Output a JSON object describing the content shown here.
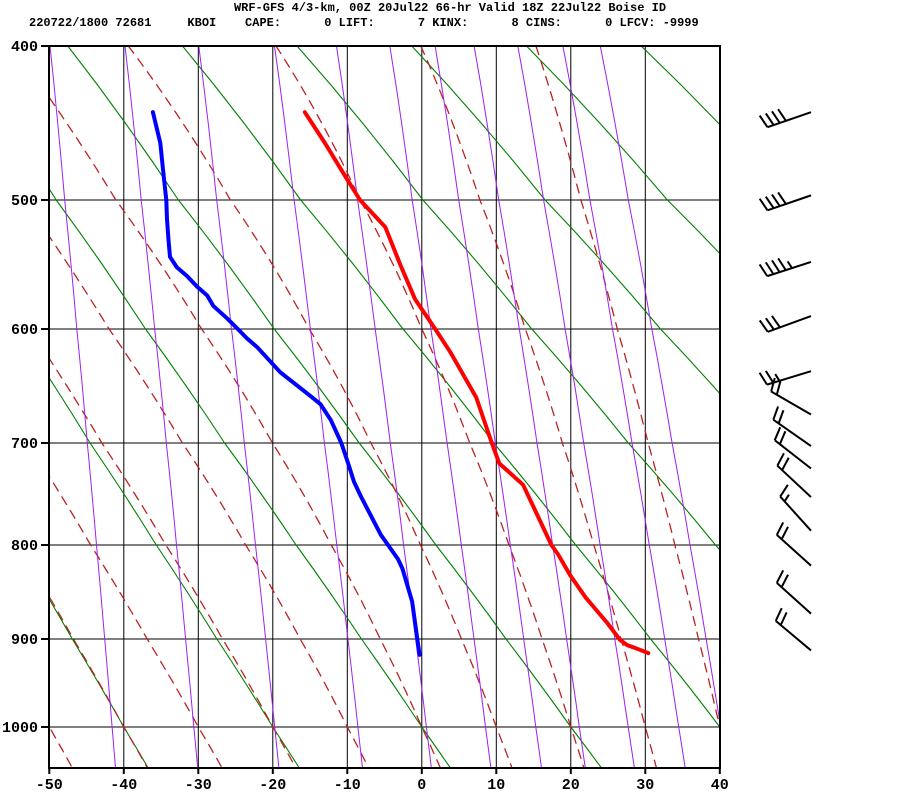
{
  "header": {
    "title": "WRF-GFS 4/3-km, 00Z 20Jul22 66-hr Valid 18Z 22Jul22 Boise ID",
    "stats": "220722/1800 72681     KBOI    CAPE:      0 LIFT:      7 KINX:      8 CINS:      0 LFCV: -9999",
    "station_id": "KBOI",
    "cape": "0",
    "lift": "7",
    "kinx": "8",
    "cins": "0",
    "lfcv": "-9999"
  },
  "chart_data": {
    "type": "line",
    "title": "WRF-GFS 4/3-km, 00Z 20Jul22 66-hr Valid 18Z 22Jul22 Boise ID",
    "xlabel": "",
    "ylabel": "",
    "x_ticks": [
      -50,
      -40,
      -30,
      -20,
      -10,
      0,
      10,
      20,
      30,
      40
    ],
    "y_ticks": [
      400,
      500,
      600,
      700,
      800,
      900,
      1000
    ],
    "xlim": [
      -50,
      40
    ],
    "pressure_lim": [
      400,
      1050
    ],
    "grid": true,
    "series": [
      {
        "name": "temperature",
        "color": "#ff0000",
        "points_p_t": [
          [
            443,
            -15.7
          ],
          [
            463,
            -13.0
          ],
          [
            482,
            -10.6
          ],
          [
            500,
            -8.3
          ],
          [
            521,
            -4.9
          ],
          [
            550,
            -2.9
          ],
          [
            577,
            -0.9
          ],
          [
            600,
            1.8
          ],
          [
            620,
            3.8
          ],
          [
            660,
            7.3
          ],
          [
            700,
            9.4
          ],
          [
            720,
            10.4
          ],
          [
            741,
            13.6
          ],
          [
            800,
            17.4
          ],
          [
            810,
            18.3
          ],
          [
            832,
            19.9
          ],
          [
            856,
            22.0
          ],
          [
            883,
            24.9
          ],
          [
            901,
            26.6
          ],
          [
            907,
            27.6
          ],
          [
            911,
            28.9
          ],
          [
            916,
            30.4
          ]
        ]
      },
      {
        "name": "dewpoint",
        "color": "#0000ff",
        "points_p_t": [
          [
            443,
            -36.1
          ],
          [
            463,
            -35.1
          ],
          [
            482,
            -34.7
          ],
          [
            500,
            -34.3
          ],
          [
            515,
            -34.2
          ],
          [
            531,
            -34.0
          ],
          [
            544,
            -33.8
          ],
          [
            552,
            -32.9
          ],
          [
            559,
            -31.5
          ],
          [
            567,
            -30.2
          ],
          [
            574,
            -28.8
          ],
          [
            582,
            -28.0
          ],
          [
            592,
            -26.1
          ],
          [
            600,
            -24.7
          ],
          [
            608,
            -23.5
          ],
          [
            616,
            -22.1
          ],
          [
            638,
            -19.0
          ],
          [
            659,
            -14.9
          ],
          [
            666,
            -13.6
          ],
          [
            680,
            -12.2
          ],
          [
            700,
            -10.8
          ],
          [
            722,
            -9.8
          ],
          [
            738,
            -9.1
          ],
          [
            752,
            -8.2
          ],
          [
            790,
            -5.5
          ],
          [
            815,
            -3.2
          ],
          [
            825,
            -2.6
          ],
          [
            860,
            -1.3
          ],
          [
            900,
            -0.6
          ],
          [
            918,
            -0.3
          ]
        ]
      }
    ],
    "background_isopleths": {
      "dry_adiabats_theta_c": [
        -40,
        -20,
        0,
        20,
        40,
        60,
        80,
        100,
        120
      ],
      "moist_adiabats_thetaw_c": [
        -50,
        -40,
        -30,
        -20,
        -10,
        0,
        10,
        20,
        30,
        40
      ],
      "mixing_ratio_g_kg": [
        0.1,
        0.3,
        0.8,
        2,
        4,
        7,
        11,
        16,
        24,
        36,
        50
      ],
      "dry_adiabat_color": "#008000",
      "moist_adiabat_color": "#bb2222",
      "mixing_ratio_color": "#a020f0",
      "grid_color": "#000000"
    },
    "wind_barbs": {
      "units": "kt",
      "levels": [
        {
          "p": 443,
          "speed_kt": 40,
          "dir_deg": 251
        },
        {
          "p": 497,
          "speed_kt": 40,
          "dir_deg": 251
        },
        {
          "p": 548,
          "speed_kt": 45,
          "dir_deg": 252
        },
        {
          "p": 590,
          "speed_kt": 30,
          "dir_deg": 250
        },
        {
          "p": 637,
          "speed_kt": 25,
          "dir_deg": 253
        },
        {
          "p": 675,
          "speed_kt": 20,
          "dir_deg": 300
        },
        {
          "p": 703,
          "speed_kt": 20,
          "dir_deg": 305
        },
        {
          "p": 725,
          "speed_kt": 20,
          "dir_deg": 308
        },
        {
          "p": 753,
          "speed_kt": 20,
          "dir_deg": 313
        },
        {
          "p": 786,
          "speed_kt": 15,
          "dir_deg": 318
        },
        {
          "p": 822,
          "speed_kt": 20,
          "dir_deg": 312
        },
        {
          "p": 873,
          "speed_kt": 20,
          "dir_deg": 312
        },
        {
          "p": 913,
          "speed_kt": 20,
          "dir_deg": 310
        }
      ]
    },
    "legend": null
  },
  "colors": {
    "background": "#ffffff",
    "text": "#000000",
    "temperature_trace": "#ff0000",
    "dewpoint_trace": "#0000ff",
    "wind_barb": "#000000"
  }
}
